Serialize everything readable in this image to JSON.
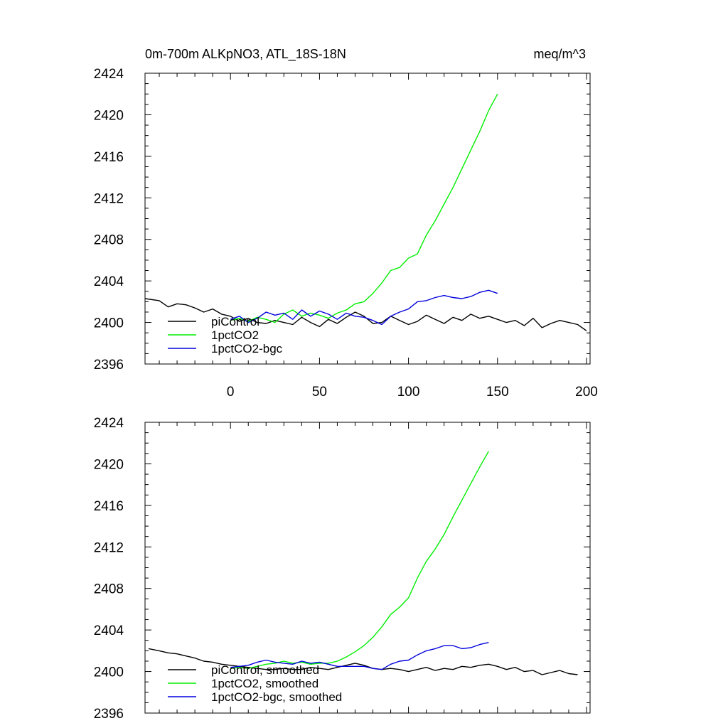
{
  "header": {
    "title_left": "0m-700m ALKpNO3, ATL_18S-18N",
    "title_right": "meq/m^3"
  },
  "colors": {
    "piControl": "#000000",
    "1pctCO2": "#00ee00",
    "1pctCO2-bgc": "#0000dd"
  },
  "chart_data": [
    {
      "type": "line",
      "panel": "top",
      "xlim": [
        -48,
        202
      ],
      "ylim": [
        2396,
        2424
      ],
      "xticks": [
        0,
        50,
        100,
        150,
        200
      ],
      "yticks": [
        2396,
        2400,
        2404,
        2408,
        2412,
        2416,
        2420,
        2424
      ],
      "ytick_labels": [
        "2396",
        "2400",
        "2404",
        "2408",
        "2412",
        "2416",
        "2420",
        "2424"
      ],
      "xtick_labels": [
        "0",
        "50",
        "100",
        "150",
        "200"
      ],
      "legend_position": "bottom-left",
      "series": [
        {
          "name": "piControl",
          "color": "#000000",
          "x": [
            -48,
            -40,
            -35,
            -30,
            -25,
            -20,
            -15,
            -10,
            -5,
            0,
            5,
            10,
            15,
            20,
            25,
            30,
            35,
            40,
            45,
            50,
            55,
            60,
            65,
            70,
            75,
            80,
            85,
            90,
            95,
            100,
            105,
            110,
            115,
            120,
            125,
            130,
            135,
            140,
            145,
            150,
            155,
            160,
            165,
            170,
            175,
            180,
            185,
            190,
            195,
            200
          ],
          "y": [
            2402.3,
            2402.1,
            2401.5,
            2401.8,
            2401.7,
            2401.4,
            2401.0,
            2401.3,
            2400.8,
            2400.6,
            2400.1,
            2400.4,
            2400.0,
            2399.9,
            2400.2,
            2400.0,
            2399.8,
            2400.5,
            2400.0,
            2399.6,
            2400.3,
            2399.9,
            2400.5,
            2401.0,
            2400.6,
            2399.9,
            2400.0,
            2400.6,
            2400.2,
            2399.8,
            2400.1,
            2400.7,
            2400.3,
            2399.9,
            2400.5,
            2400.2,
            2400.8,
            2400.4,
            2400.6,
            2400.3,
            2400.0,
            2400.2,
            2399.7,
            2400.4,
            2399.5,
            2399.9,
            2400.2,
            2400.0,
            2399.8,
            2399.2
          ],
          "pc_y": []
        },
        {
          "name": "1pctCO2",
          "color": "#00ee00",
          "x": [
            0,
            5,
            10,
            15,
            20,
            25,
            30,
            35,
            40,
            45,
            50,
            55,
            60,
            65,
            70,
            75,
            80,
            85,
            90,
            95,
            100,
            105,
            110,
            115,
            120,
            125,
            130,
            135,
            140,
            145,
            150
          ],
          "y": [
            2400.2,
            2400.4,
            2400.1,
            2400.5,
            2400.3,
            2400.0,
            2400.8,
            2401.2,
            2400.6,
            2400.9,
            2400.7,
            2400.4,
            2400.9,
            2401.2,
            2401.8,
            2402.0,
            2402.8,
            2403.8,
            2405.0,
            2405.3,
            2406.2,
            2406.6,
            2408.4,
            2409.8,
            2411.4,
            2413.0,
            2414.8,
            2416.6,
            2418.4,
            2420.4,
            2422.0
          ],
          "pc_y": []
        },
        {
          "name": "1pctCO2-bgc",
          "color": "#0000dd",
          "x": [
            0,
            5,
            10,
            15,
            20,
            25,
            30,
            35,
            40,
            45,
            50,
            55,
            60,
            65,
            70,
            75,
            80,
            85,
            90,
            95,
            100,
            105,
            110,
            115,
            120,
            125,
            130,
            135,
            140,
            145,
            150
          ],
          "y": [
            2400.3,
            2400.6,
            2400.0,
            2400.4,
            2401.0,
            2400.7,
            2400.9,
            2400.3,
            2401.2,
            2400.6,
            2401.1,
            2400.8,
            2400.3,
            2400.9,
            2400.6,
            2400.5,
            2400.2,
            2399.8,
            2400.6,
            2401.0,
            2401.3,
            2402.0,
            2402.1,
            2402.4,
            2402.6,
            2402.4,
            2402.3,
            2402.5,
            2402.9,
            2403.1,
            2402.8
          ],
          "pc_y": []
        }
      ]
    },
    {
      "type": "line",
      "panel": "bottom",
      "xlim": [
        -48,
        202
      ],
      "ylim": [
        2396,
        2424
      ],
      "xticks": [
        0,
        50,
        100,
        150,
        200
      ],
      "yticks": [
        2396,
        2400,
        2404,
        2408,
        2412,
        2416,
        2420,
        2424
      ],
      "ytick_labels": [
        "2396",
        "2400",
        "2404",
        "2408",
        "2412",
        "2416",
        "2420",
        "2424"
      ],
      "legend_position": "bottom-left",
      "series": [
        {
          "name": "piControl, smoothed",
          "color": "#000000",
          "x": [
            -46,
            -40,
            -35,
            -30,
            -25,
            -20,
            -15,
            -10,
            -5,
            0,
            5,
            10,
            15,
            20,
            25,
            30,
            35,
            40,
            45,
            50,
            55,
            60,
            65,
            70,
            75,
            80,
            85,
            90,
            95,
            100,
            105,
            110,
            115,
            120,
            125,
            130,
            135,
            140,
            145,
            150,
            155,
            160,
            165,
            170,
            175,
            180,
            185,
            190,
            195
          ],
          "y": [
            2402.2,
            2402.0,
            2401.8,
            2401.7,
            2401.5,
            2401.3,
            2401.0,
            2400.9,
            2400.7,
            2400.6,
            2400.5,
            2400.4,
            2400.3,
            2400.2,
            2400.2,
            2400.3,
            2400.2,
            2400.2,
            2400.4,
            2400.3,
            2400.2,
            2400.4,
            2400.6,
            2400.8,
            2400.6,
            2400.3,
            2400.2,
            2400.3,
            2400.2,
            2400.0,
            2400.2,
            2400.4,
            2400.1,
            2400.3,
            2400.2,
            2400.5,
            2400.4,
            2400.6,
            2400.7,
            2400.5,
            2400.2,
            2400.4,
            2400.0,
            2400.1,
            2399.7,
            2399.9,
            2400.1,
            2399.8,
            2399.7
          ],
          "pc_y": []
        },
        {
          "name": "1pctCO2, smoothed",
          "color": "#00ee00",
          "x": [
            0,
            5,
            10,
            15,
            20,
            25,
            30,
            35,
            40,
            45,
            50,
            55,
            60,
            65,
            70,
            75,
            80,
            85,
            90,
            95,
            100,
            105,
            110,
            115,
            120,
            125,
            130,
            135,
            140,
            145
          ],
          "y": [
            2400.3,
            2400.4,
            2400.3,
            2400.5,
            2400.7,
            2400.8,
            2401.0,
            2400.8,
            2400.9,
            2400.7,
            2400.8,
            2400.8,
            2401.0,
            2401.4,
            2401.9,
            2402.5,
            2403.3,
            2404.3,
            2405.5,
            2406.2,
            2407.1,
            2409.0,
            2410.6,
            2411.8,
            2413.2,
            2414.9,
            2416.5,
            2418.1,
            2419.7,
            2421.2
          ],
          "pc_y": []
        },
        {
          "name": "1pctCO2-bgc, smoothed",
          "color": "#0000dd",
          "x": [
            0,
            5,
            10,
            15,
            20,
            25,
            30,
            35,
            40,
            45,
            50,
            55,
            60,
            65,
            70,
            75,
            80,
            85,
            90,
            95,
            100,
            105,
            110,
            115,
            120,
            125,
            130,
            135,
            140,
            145
          ],
          "y": [
            2400.4,
            2400.5,
            2400.6,
            2400.9,
            2401.1,
            2400.9,
            2400.8,
            2400.7,
            2401.0,
            2400.8,
            2400.9,
            2400.7,
            2400.5,
            2400.5,
            2400.5,
            2400.5,
            2400.3,
            2400.2,
            2400.7,
            2401.0,
            2401.1,
            2401.6,
            2402.0,
            2402.2,
            2402.5,
            2402.5,
            2402.2,
            2402.3,
            2402.6,
            2402.8
          ],
          "pc_y": []
        }
      ]
    }
  ]
}
